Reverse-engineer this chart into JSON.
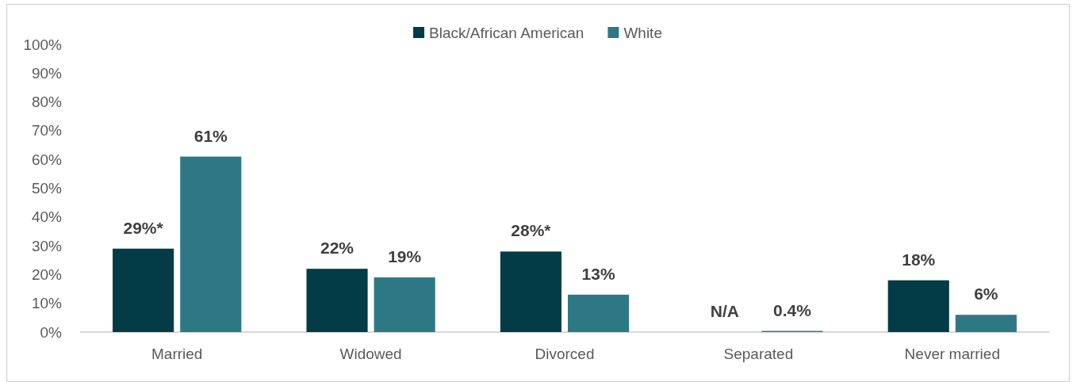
{
  "chart_data": {
    "type": "bar",
    "categories": [
      "Married",
      "Widowed",
      "Divorced",
      "Separated",
      "Never married"
    ],
    "series": [
      {
        "name": "Black/African American",
        "color": "#033c47",
        "values": [
          29,
          22,
          28,
          null,
          18
        ],
        "value_labels": [
          "29%*",
          "22%",
          "28%*",
          "N/A",
          "18%"
        ]
      },
      {
        "name": "White",
        "color": "#2e7886",
        "values": [
          61,
          19,
          13,
          0.4,
          6
        ],
        "value_labels": [
          "61%",
          "19%",
          "13%",
          "0.4%",
          "6%"
        ]
      }
    ],
    "ylim": [
      0,
      100
    ],
    "yticks": [
      {
        "value": 0,
        "label": "0%"
      },
      {
        "value": 10,
        "label": "10%"
      },
      {
        "value": 20,
        "label": "20%"
      },
      {
        "value": 30,
        "label": "30%"
      },
      {
        "value": 40,
        "label": "40%"
      },
      {
        "value": 50,
        "label": "50%"
      },
      {
        "value": 60,
        "label": "60%"
      },
      {
        "value": 70,
        "label": "70%"
      },
      {
        "value": 80,
        "label": "80%"
      },
      {
        "value": 90,
        "label": "90%"
      },
      {
        "value": 100,
        "label": "100%"
      }
    ],
    "legend": "top"
  }
}
